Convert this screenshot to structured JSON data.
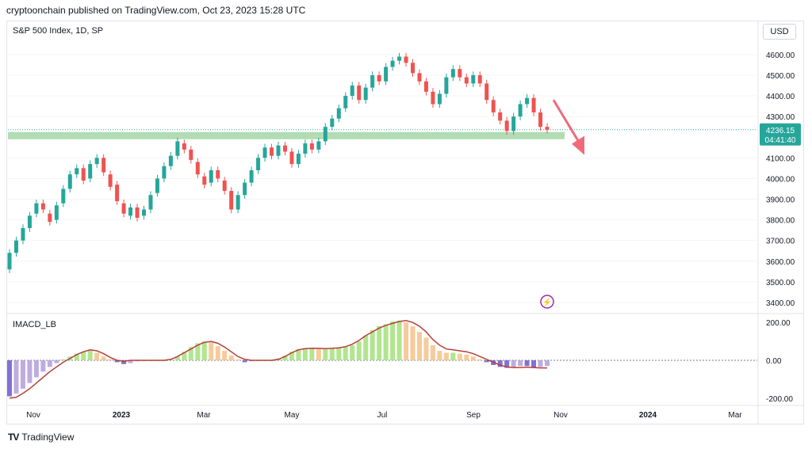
{
  "header": {
    "published_by": "cryptoonchain published on TradingView.com, Oct 23, 2023 15:28 UTC"
  },
  "footer": {
    "brand": "TradingView",
    "logo_icon": "tradingview-logo-icon"
  },
  "chart_data": {
    "type": "candlestick",
    "title": "S&P 500 Index, 1D, SP",
    "currency": "USD",
    "last_price": "4236.15",
    "countdown": "04:41:40",
    "colors": {
      "up": "#26a69a",
      "down": "#ef5350",
      "support_zone": "#a5d6a7",
      "arrow": "#f06b7a",
      "signal_line": "#b5403a",
      "price_label": "#26a69a"
    },
    "x_ticks": [
      "Nov",
      "2023",
      "Mar",
      "May",
      "Jul",
      "Sep",
      "Nov",
      "2024",
      "Mar"
    ],
    "y_ticks": [
      "4600.00",
      "4500.00",
      "4400.00",
      "4300.00",
      "4100.00",
      "4000.00",
      "3900.00",
      "3800.00",
      "3700.00",
      "3600.00",
      "3500.00",
      "3400.00"
    ],
    "ylim": [
      3350,
      4680
    ],
    "support_zone": {
      "low": 4190,
      "high": 4225
    },
    "projection": {
      "from": 4380,
      "to": 4160,
      "direction": "down"
    },
    "price_path": [
      [
        3560,
        3640
      ],
      [
        3640,
        3700
      ],
      [
        3700,
        3760
      ],
      [
        3760,
        3820
      ],
      [
        3830,
        3880
      ],
      [
        3880,
        3850
      ],
      [
        3830,
        3790
      ],
      [
        3800,
        3870
      ],
      [
        3880,
        3950
      ],
      [
        3950,
        4020
      ],
      [
        4020,
        4050
      ],
      [
        4050,
        3990
      ],
      [
        4000,
        4070
      ],
      [
        4070,
        4100
      ],
      [
        4100,
        4030
      ],
      [
        4020,
        3960
      ],
      [
        3970,
        3890
      ],
      [
        3880,
        3830
      ],
      [
        3820,
        3860
      ],
      [
        3860,
        3810
      ],
      [
        3820,
        3850
      ],
      [
        3850,
        3920
      ],
      [
        3930,
        4000
      ],
      [
        4000,
        4060
      ],
      [
        4060,
        4110
      ],
      [
        4110,
        4180
      ],
      [
        4170,
        4140
      ],
      [
        4140,
        4090
      ],
      [
        4080,
        4020
      ],
      [
        4010,
        3970
      ],
      [
        3980,
        4040
      ],
      [
        4040,
        4000
      ],
      [
        3990,
        3940
      ],
      [
        3940,
        3850
      ],
      [
        3850,
        3920
      ],
      [
        3920,
        3980
      ],
      [
        3980,
        4040
      ],
      [
        4040,
        4100
      ],
      [
        4100,
        4150
      ],
      [
        4150,
        4110
      ],
      [
        4110,
        4160
      ],
      [
        4160,
        4130
      ],
      [
        4130,
        4070
      ],
      [
        4070,
        4120
      ],
      [
        4120,
        4170
      ],
      [
        4170,
        4140
      ],
      [
        4140,
        4180
      ],
      [
        4180,
        4250
      ],
      [
        4250,
        4290
      ],
      [
        4290,
        4340
      ],
      [
        4340,
        4400
      ],
      [
        4400,
        4450
      ],
      [
        4450,
        4380
      ],
      [
        4380,
        4440
      ],
      [
        4440,
        4500
      ],
      [
        4500,
        4470
      ],
      [
        4470,
        4540
      ],
      [
        4540,
        4570
      ],
      [
        4570,
        4590
      ],
      [
        4590,
        4560
      ],
      [
        4560,
        4510
      ],
      [
        4510,
        4470
      ],
      [
        4470,
        4420
      ],
      [
        4420,
        4360
      ],
      [
        4360,
        4410
      ],
      [
        4410,
        4490
      ],
      [
        4490,
        4530
      ],
      [
        4530,
        4490
      ],
      [
        4490,
        4460
      ],
      [
        4460,
        4500
      ],
      [
        4500,
        4460
      ],
      [
        4460,
        4380
      ],
      [
        4380,
        4320
      ],
      [
        4320,
        4280
      ],
      [
        4280,
        4230
      ],
      [
        4230,
        4300
      ],
      [
        4300,
        4360
      ],
      [
        4360,
        4390
      ],
      [
        4390,
        4320
      ],
      [
        4320,
        4250
      ],
      [
        4250,
        4236
      ]
    ],
    "indicator": {
      "name": "IMACD_LB",
      "y_ticks": [
        "200.00",
        "0.00",
        "-200.00"
      ],
      "ylim": [
        -230,
        230
      ],
      "colors": {
        "positive": "#a5e07b",
        "positive_fade": "#f5c28a",
        "negative": "#6a5acd",
        "negative_light": "#b39ddb"
      },
      "histogram": [
        -190,
        -175,
        -150,
        -120,
        -90,
        -60,
        -35,
        -15,
        5,
        20,
        35,
        45,
        55,
        40,
        20,
        5,
        -10,
        -20,
        -15,
        -5,
        0,
        0,
        0,
        0,
        5,
        20,
        45,
        70,
        90,
        100,
        95,
        75,
        50,
        25,
        5,
        -10,
        -5,
        0,
        0,
        0,
        10,
        25,
        45,
        60,
        65,
        65,
        60,
        60,
        62,
        65,
        70,
        80,
        100,
        130,
        160,
        180,
        190,
        205,
        210,
        200,
        180,
        150,
        120,
        80,
        50,
        40,
        40,
        35,
        30,
        20,
        5,
        -10,
        -25,
        -35,
        -40,
        -35,
        -30,
        -30,
        -40,
        -35,
        -30
      ],
      "signal": [
        -200,
        -195,
        -175,
        -150,
        -120,
        -90,
        -60,
        -35,
        -10,
        10,
        30,
        45,
        55,
        50,
        35,
        15,
        0,
        -5,
        0,
        0,
        0,
        0,
        0,
        0,
        5,
        20,
        40,
        60,
        80,
        95,
        100,
        90,
        70,
        45,
        20,
        5,
        0,
        0,
        0,
        0,
        5,
        20,
        40,
        55,
        62,
        64,
        63,
        62,
        63,
        66,
        72,
        85,
        105,
        130,
        150,
        170,
        185,
        195,
        205,
        210,
        200,
        180,
        150,
        110,
        80,
        60,
        55,
        50,
        45,
        35,
        20,
        5,
        -10,
        -25,
        -35,
        -38,
        -38,
        -36,
        -38,
        -40,
        -40
      ]
    }
  }
}
